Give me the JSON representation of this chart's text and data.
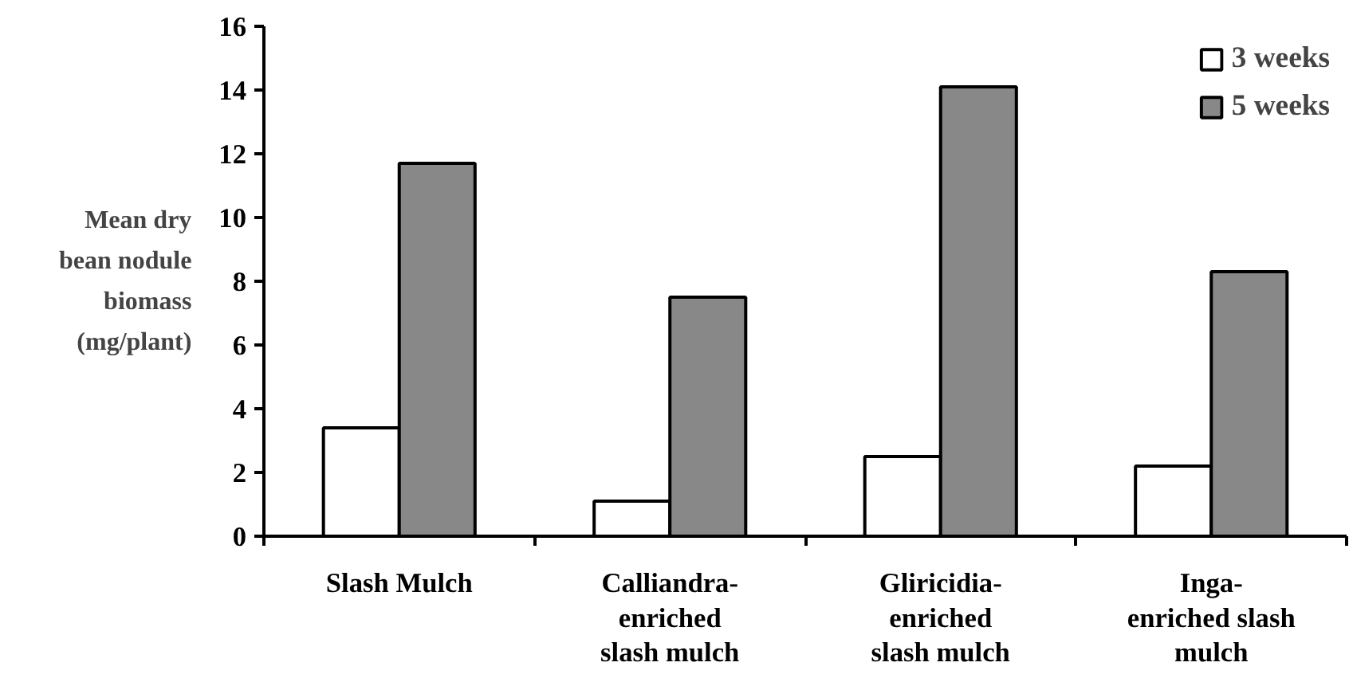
{
  "chart_data": {
    "type": "bar",
    "ylabel": "Mean dry\nbean nodule\nbiomass\n(mg/plant)",
    "categories": [
      "Slash Mulch",
      "Calliandra-\nenriched\nslash mulch",
      "Gliricidia-\nenriched\nslash mulch",
      "Inga-\nenriched slash\nmulch"
    ],
    "series": [
      {
        "name": "3 weeks",
        "color": "#ffffff",
        "values": [
          3.4,
          1.1,
          2.5,
          2.2
        ]
      },
      {
        "name": "5 weeks",
        "color": "#888888",
        "values": [
          11.7,
          7.5,
          14.1,
          8.3
        ]
      }
    ],
    "ylim": [
      0,
      16
    ],
    "yticks": [
      0,
      2,
      4,
      6,
      8,
      10,
      12,
      14,
      16
    ],
    "grid": false,
    "legend": "top right"
  }
}
